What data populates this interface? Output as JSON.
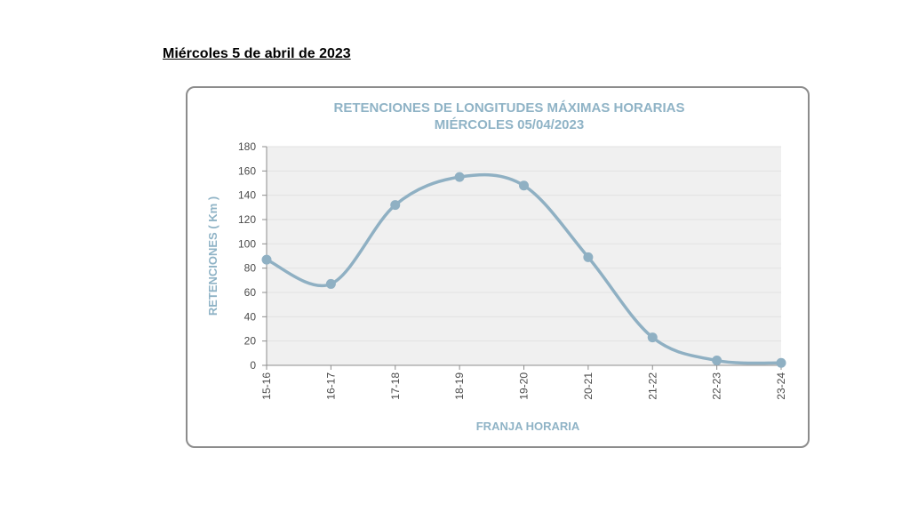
{
  "page": {
    "heading": "Miércoles 5 de abril de 2023"
  },
  "chart_data": {
    "type": "line",
    "title": "RETENCIONES DE LONGITUDES MÁXIMAS HORARIAS",
    "subtitle": "MIÉRCOLES 05/04/2023",
    "xlabel": "FRANJA HORARIA",
    "ylabel": "RETENCIONES ( Km )",
    "categories": [
      "15-16",
      "16-17",
      "17-18",
      "18-19",
      "19-20",
      "20-21",
      "21-22",
      "22-23",
      "23-24"
    ],
    "values": [
      87,
      67,
      132,
      155,
      148,
      89,
      23,
      4,
      2
    ],
    "ylim": [
      0,
      180
    ],
    "yticks": [
      0,
      20,
      40,
      60,
      80,
      100,
      120,
      140,
      160,
      180
    ],
    "grid": true,
    "smooth": true,
    "legend": "none",
    "colors": {
      "line": "#8fb0c3",
      "marker": "#8fb0c3",
      "plot_background": "#f0f0f0",
      "gridline": "#e2e2e2",
      "title": "#8fb3c6",
      "axis": "#8c8c8c"
    }
  }
}
